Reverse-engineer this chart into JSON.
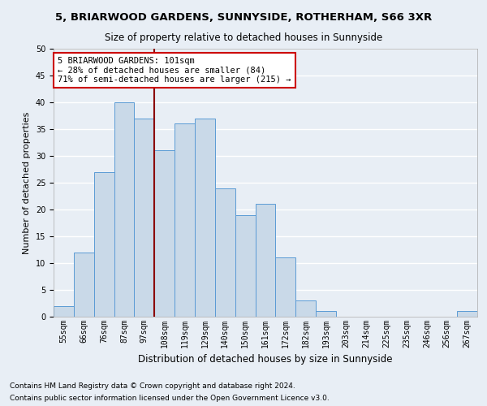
{
  "title1": "5, BRIARWOOD GARDENS, SUNNYSIDE, ROTHERHAM, S66 3XR",
  "title2": "Size of property relative to detached houses in Sunnyside",
  "xlabel": "Distribution of detached houses by size in Sunnyside",
  "ylabel": "Number of detached properties",
  "footnote1": "Contains HM Land Registry data © Crown copyright and database right 2024.",
  "footnote2": "Contains public sector information licensed under the Open Government Licence v3.0.",
  "bin_labels": [
    "55sqm",
    "66sqm",
    "76sqm",
    "87sqm",
    "97sqm",
    "108sqm",
    "119sqm",
    "129sqm",
    "140sqm",
    "150sqm",
    "161sqm",
    "172sqm",
    "182sqm",
    "193sqm",
    "203sqm",
    "214sqm",
    "225sqm",
    "235sqm",
    "246sqm",
    "256sqm",
    "267sqm"
  ],
  "bar_values": [
    2,
    12,
    27,
    40,
    37,
    31,
    36,
    37,
    24,
    19,
    21,
    11,
    3,
    1,
    0,
    0,
    0,
    0,
    0,
    0,
    1
  ],
  "bar_color": "#c9d9e8",
  "bar_edge_color": "#5b9bd5",
  "property_bin_index": 4,
  "vline_color": "#8b0000",
  "ylim": [
    0,
    50
  ],
  "yticks": [
    0,
    5,
    10,
    15,
    20,
    25,
    30,
    35,
    40,
    45,
    50
  ],
  "annotation_text": "5 BRIARWOOD GARDENS: 101sqm\n← 28% of detached houses are smaller (84)\n71% of semi-detached houses are larger (215) →",
  "annotation_box_color": "white",
  "annotation_box_edge": "#cc0000",
  "bg_color": "#e8eef5",
  "grid_color": "#ffffff",
  "title1_fontsize": 9.5,
  "title2_fontsize": 8.5,
  "ylabel_fontsize": 8,
  "xlabel_fontsize": 8.5,
  "tick_fontsize": 7,
  "footnote_fontsize": 6.5,
  "ann_fontsize": 7.5
}
